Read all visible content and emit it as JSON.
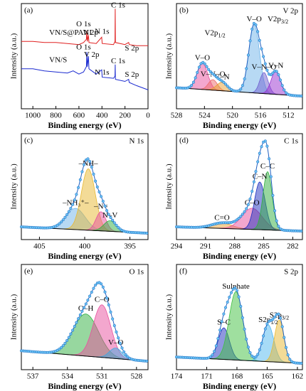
{
  "chart_data": [
    {
      "type": "line",
      "label": "(a)",
      "xlabel": "Binding energy (eV)",
      "ylabel": "Intensity (a.u.)",
      "xlim": [
        1100,
        0
      ],
      "xticks": [
        1000,
        800,
        600,
        400,
        200,
        0
      ],
      "ylim": [
        0,
        100
      ],
      "series": [
        {
          "name": "VN/S@PANI",
          "color": "#e02020",
          "x": [
            1100,
            1000,
            900,
            800,
            700,
            600,
            560,
            535,
            531,
            527,
            517,
            513,
            450,
            402,
            398,
            300,
            287,
            285,
            283,
            200,
            168,
            163,
            100,
            0
          ],
          "values": [
            64,
            64,
            63,
            63,
            62,
            61,
            63,
            66,
            74,
            64,
            70,
            63,
            62,
            68,
            62,
            61,
            64,
            95,
            63,
            61,
            63,
            61,
            60,
            60
          ],
          "annotations": [
            {
              "text": "O 1s",
              "x": 560,
              "y": 80
            },
            {
              "text": "V 2p",
              "x": 500,
              "y": 72
            },
            {
              "text": "N 1s",
              "x": 400,
              "y": 73
            },
            {
              "text": "C 1s",
              "x": 260,
              "y": 98
            },
            {
              "text": "S 2p",
              "x": 140,
              "y": 57
            }
          ]
        },
        {
          "name": "VN/S",
          "color": "#1a2ad0",
          "x": [
            1100,
            1000,
            900,
            800,
            700,
            650,
            600,
            560,
            535,
            531,
            527,
            517,
            513,
            450,
            402,
            398,
            300,
            287,
            285,
            283,
            200,
            168,
            163,
            100,
            0
          ],
          "values": [
            38,
            38,
            36,
            35,
            34,
            36,
            33,
            35,
            40,
            54,
            40,
            50,
            38,
            33,
            37,
            30,
            29,
            31,
            42,
            28,
            26,
            28,
            25,
            22,
            18
          ],
          "annotations": [
            {
              "text": "O 1s",
              "x": 560,
              "y": 58
            },
            {
              "text": "V 2p",
              "x": 490,
              "y": 51
            },
            {
              "text": "N 1s",
              "x": 400,
              "y": 34
            },
            {
              "text": "C 1s",
              "x": 260,
              "y": 45
            },
            {
              "text": "S 2p",
              "x": 140,
              "y": 32
            }
          ]
        }
      ]
    },
    {
      "type": "xps-fit",
      "label": "(b)",
      "title": "V 2p",
      "xlabel": "Binding energy (eV)",
      "ylabel": "Intensity (a.u.)",
      "xlim": [
        528,
        510
      ],
      "xticks": [
        528,
        524,
        520,
        516,
        512
      ],
      "ylim": [
        0,
        100
      ],
      "background": [
        20,
        12
      ],
      "peaks": [
        {
          "name": "V–O",
          "center": 524.3,
          "height": 25,
          "fwhm": 1.8,
          "color": "#e8509e"
        },
        {
          "name": "V–N–O",
          "center": 522.8,
          "height": 10,
          "fwhm": 1.5,
          "color": "#ee6a6a"
        },
        {
          "name": "V–N",
          "center": 521.5,
          "height": 8,
          "fwhm": 1.8,
          "color": "#e8a030"
        },
        {
          "name": "V–O",
          "center": 516.9,
          "height": 65,
          "fwhm": 1.8,
          "color": "#6fb4ea"
        },
        {
          "name": "V–N–O",
          "center": 515.5,
          "height": 20,
          "fwhm": 1.4,
          "color": "#7060d0"
        },
        {
          "name": "V–N",
          "center": 513.8,
          "height": 22,
          "fwhm": 1.6,
          "color": "#9a30d0"
        }
      ],
      "annotations": [
        {
          "text": "V2p",
          "sub": "1/2",
          "x": 522.5,
          "y": 72
        },
        {
          "text": "V2p",
          "sub": "3/2",
          "x": 513.5,
          "y": 85
        }
      ]
    },
    {
      "type": "xps-fit",
      "label": "(c)",
      "title": "N 1s",
      "xlabel": "Binding energy (eV)",
      "ylabel": "Intensity (a.u.)",
      "xlim": [
        407,
        393
      ],
      "xticks": [
        405,
        400,
        395
      ],
      "ylim": [
        0,
        100
      ],
      "background": [
        12,
        6
      ],
      "peaks": [
        {
          "name": "–NH₃⁺–",
          "center": 401.0,
          "height": 20,
          "fwhm": 2.5,
          "color": "#6fb4ea"
        },
        {
          "name": "–NH–",
          "center": 399.6,
          "height": 58,
          "fwhm": 1.8,
          "color": "#e8b830"
        },
        {
          "name": "–N=",
          "center": 398.2,
          "height": 18,
          "fwhm": 1.3,
          "color": "#e8509e"
        },
        {
          "name": "N–V",
          "center": 397.2,
          "height": 10,
          "fwhm": 1.6,
          "color": "#30b040"
        }
      ]
    },
    {
      "type": "xps-fit",
      "label": "(d)",
      "title": "C 1s",
      "xlabel": "Binding energy (eV)",
      "ylabel": "Intensity (a.u.)",
      "xlim": [
        294,
        281
      ],
      "xticks": [
        294,
        291,
        288,
        285,
        282
      ],
      "ylim": [
        0,
        100
      ],
      "background": [
        12,
        8
      ],
      "peaks": [
        {
          "name": "C=O",
          "center": 289.3,
          "height": 5,
          "fwhm": 2.5,
          "color": "#e8a030"
        },
        {
          "name": "C–O",
          "center": 286.2,
          "height": 20,
          "fwhm": 2.5,
          "color": "#e8509e"
        },
        {
          "name": "C–N",
          "center": 285.4,
          "height": 45,
          "fwhm": 1.3,
          "color": "#2030c0"
        },
        {
          "name": "C–C",
          "center": 284.6,
          "height": 55,
          "fwhm": 1.1,
          "color": "#30b040"
        }
      ]
    },
    {
      "type": "xps-fit",
      "label": "(e)",
      "title": "O 1s",
      "xlabel": "Binding energy (eV)",
      "ylabel": "Intensity (a.u.)",
      "xlim": [
        538,
        527
      ],
      "xticks": [
        537,
        534,
        531,
        528
      ],
      "ylim": [
        0,
        100
      ],
      "background": [
        18,
        8
      ],
      "peaks": [
        {
          "name": "O–H",
          "center": 532.4,
          "height": 40,
          "fwhm": 2.6,
          "color": "#30b040"
        },
        {
          "name": "C–O",
          "center": 531.0,
          "height": 50,
          "fwhm": 1.8,
          "color": "#e8509e"
        },
        {
          "name": "V–O",
          "center": 529.8,
          "height": 10,
          "fwhm": 1.3,
          "color": "#40a8e0"
        }
      ]
    },
    {
      "type": "xps-fit",
      "label": "(f)",
      "title": "S 2p",
      "xlabel": "Binding energy (eV)",
      "ylabel": "Intensity (a.u.)",
      "xlim": [
        174,
        161.5
      ],
      "xticks": [
        174,
        171,
        168,
        165,
        162
      ],
      "ylim": [
        0,
        100
      ],
      "background": [
        12,
        6
      ],
      "peaks": [
        {
          "name": "S–C",
          "center": 169.3,
          "height": 30,
          "fwhm": 1.3,
          "color": "#2030c0"
        },
        {
          "name": "Sulphate",
          "center": 168.1,
          "height": 65,
          "fwhm": 1.6,
          "color": "#40c040"
        },
        {
          "name": "S2p",
          "sub": "1/2",
          "center": 164.9,
          "height": 35,
          "fwhm": 1.3,
          "color": "#50b8f0"
        },
        {
          "name": "S2p",
          "sub": "3/2",
          "center": 163.8,
          "height": 40,
          "fwhm": 1.1,
          "color": "#e8b830"
        }
      ]
    }
  ]
}
